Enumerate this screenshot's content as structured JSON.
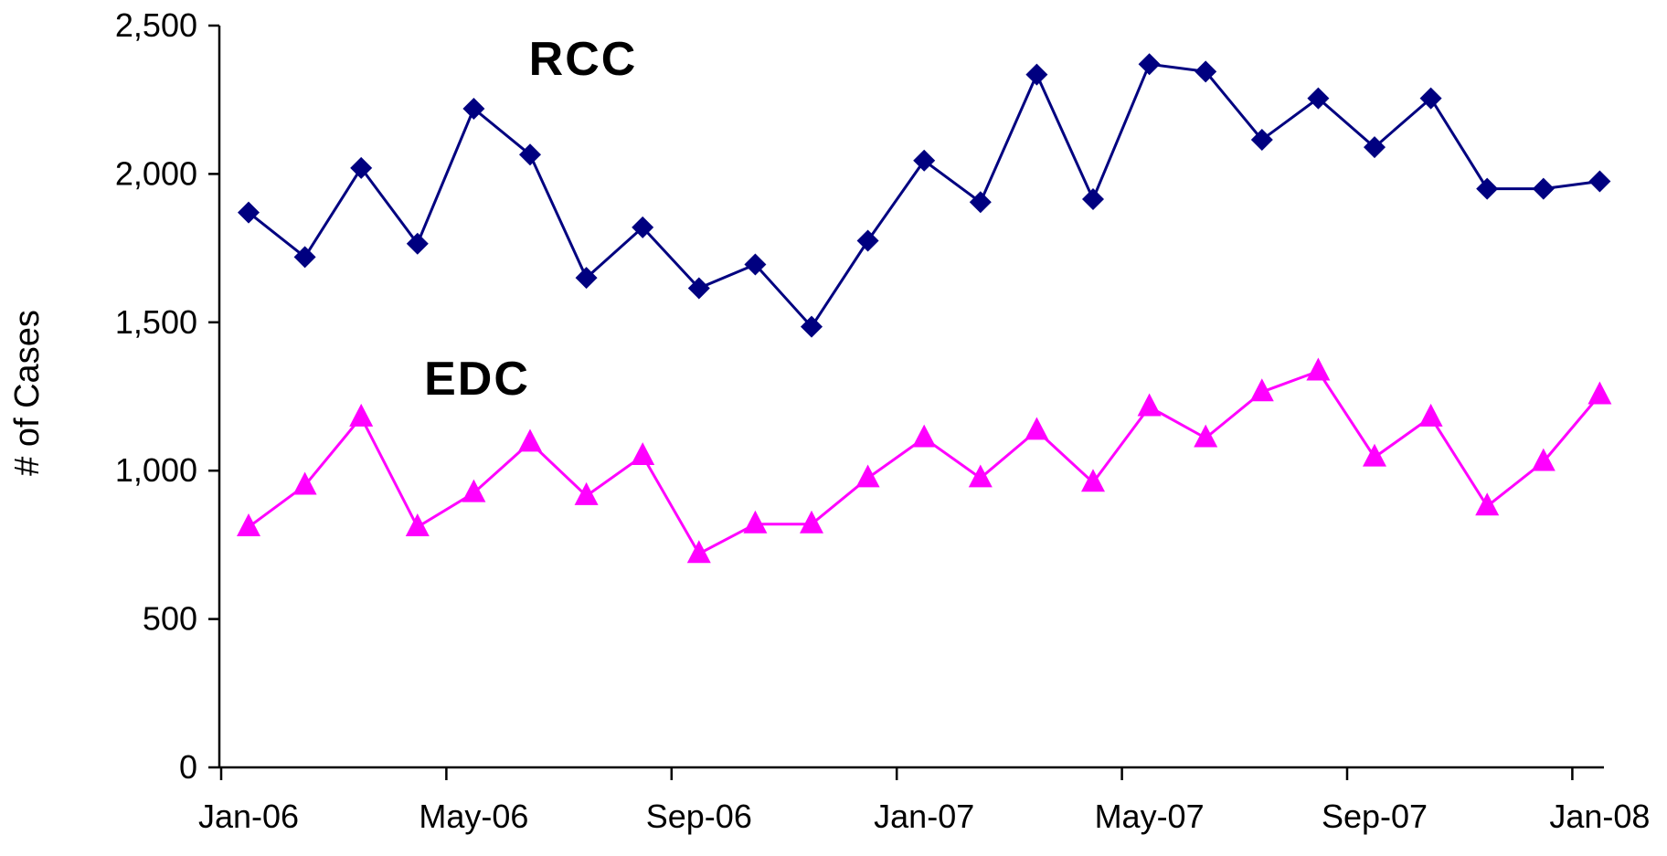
{
  "chart_data": {
    "type": "line",
    "title": "",
    "xlabel": "",
    "ylabel": "# of Cases",
    "ylim": [
      0,
      2500
    ],
    "yticks": [
      0,
      500,
      1000,
      1500,
      2000,
      2500
    ],
    "ytick_labels": [
      "0",
      "500",
      "1,000",
      "1,500",
      "2,000",
      "2,500"
    ],
    "xticks": [
      "Jan-06",
      "May-06",
      "Sep-06",
      "Jan-07",
      "May-07",
      "Sep-07",
      "Jan-08"
    ],
    "grid": false,
    "legend": "none",
    "x": [
      "Jan-06",
      "Feb-06",
      "Mar-06",
      "Apr-06",
      "May-06",
      "Jun-06",
      "Jul-06",
      "Aug-06",
      "Sep-06",
      "Oct-06",
      "Nov-06",
      "Dec-06",
      "Jan-07",
      "Feb-07",
      "Mar-07",
      "Apr-07",
      "May-07",
      "Jun-07",
      "Jul-07",
      "Aug-07",
      "Sep-07",
      "Oct-07",
      "Nov-07",
      "Dec-07",
      "Jan-08"
    ],
    "series": [
      {
        "name": "RCC",
        "color": "#000080",
        "marker": "diamond",
        "values": [
          1870,
          1720,
          2020,
          1765,
          2220,
          2065,
          1650,
          1820,
          1615,
          1695,
          1485,
          1775,
          2045,
          1905,
          2335,
          1915,
          2370,
          2345,
          2115,
          2255,
          2090,
          2255,
          1950,
          1950,
          1975
        ]
      },
      {
        "name": "EDC",
        "color": "#FF00FF",
        "marker": "triangle",
        "values": [
          810,
          950,
          1180,
          810,
          925,
          1095,
          915,
          1050,
          720,
          820,
          820,
          975,
          1110,
          975,
          1135,
          960,
          1215,
          1110,
          1265,
          1335,
          1045,
          1180,
          880,
          1030,
          1255
        ]
      }
    ]
  }
}
